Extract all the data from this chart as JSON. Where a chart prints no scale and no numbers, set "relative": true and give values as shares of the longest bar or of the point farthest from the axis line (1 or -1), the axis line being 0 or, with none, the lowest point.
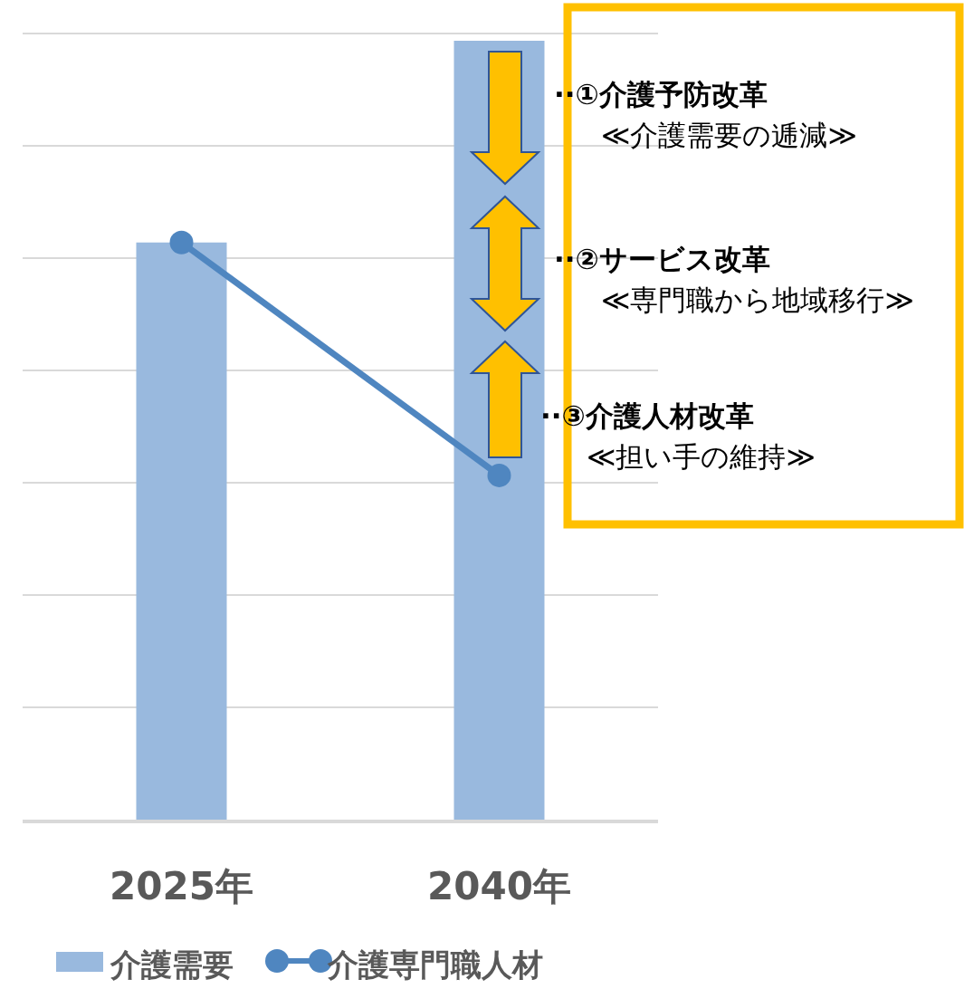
{
  "chart_data": {
    "type": "bar",
    "relative": true,
    "categories": [
      "2025年",
      "2040年"
    ],
    "series": [
      {
        "name": "介護需要",
        "color": "#99b9de",
        "values": [
          0.741,
          1
        ]
      },
      {
        "name": "介護専門職人材",
        "type": "line",
        "color": "#4f86c0",
        "marker": "circle",
        "values": [
          0.741,
          0.442
        ]
      }
    ],
    "grid": "y",
    "legend": "bottom",
    "annotations": [
      "··①介護予防改革",
      "≪介護需要の逓減≫",
      "··②サービス改革",
      "≪専門職から地域移行≫",
      "··③介護人材改革",
      "≪担い手の維持≫"
    ]
  }
}
